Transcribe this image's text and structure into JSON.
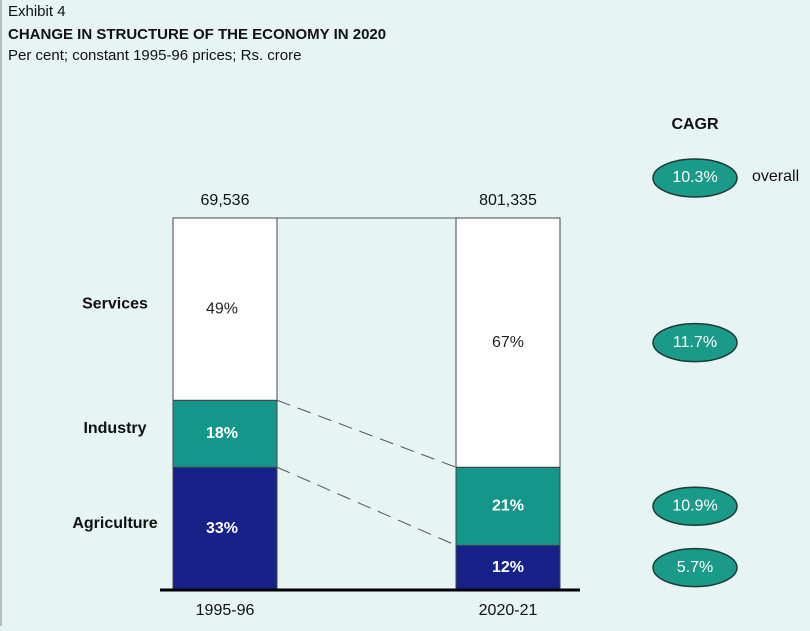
{
  "chart_data": {
    "type": "bar",
    "stacked": true,
    "exhibit": "Exhibit 4",
    "title": "CHANGE IN STRUCTURE OF THE ECONOMY IN 2020",
    "subtitle": "Per cent; constant 1995-96 prices; Rs. crore",
    "categories": [
      "1995-96",
      "2020-21"
    ],
    "ylim": [
      0,
      100
    ],
    "totals": {
      "values": [
        69536,
        801335
      ],
      "value_labels": [
        "69,536",
        "801,335"
      ]
    },
    "series": [
      {
        "name": "Agriculture",
        "color": "#17218a",
        "values": [
          33,
          12
        ],
        "value_labels": [
          "33%",
          "12%"
        ],
        "cagr": {
          "value": 5.7,
          "label": "5.7%"
        }
      },
      {
        "name": "Industry",
        "color": "#14978a",
        "values": [
          18,
          21
        ],
        "value_labels": [
          "18%",
          "21%"
        ],
        "cagr": {
          "value": 10.9,
          "label": "10.9%"
        }
      },
      {
        "name": "Services",
        "color": "#ffffff",
        "values": [
          49,
          67
        ],
        "value_labels": [
          "49%",
          "67%"
        ],
        "cagr": {
          "value": 11.7,
          "label": "11.7%"
        }
      }
    ],
    "cagr_title": "CAGR",
    "overall_cagr": {
      "value": 10.3,
      "label": "10.3%",
      "name": "overall"
    },
    "badge_color": "#1a9a88"
  }
}
